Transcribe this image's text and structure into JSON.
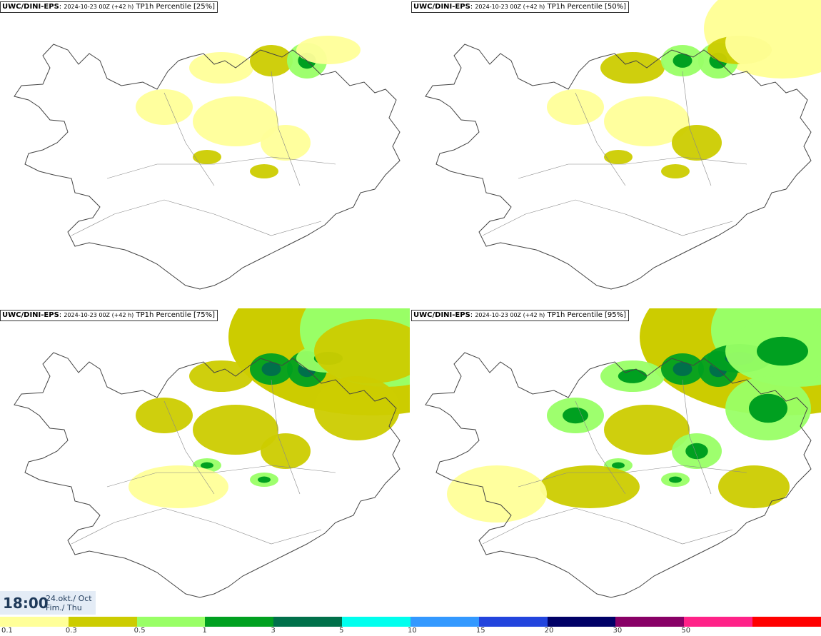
{
  "panels": [
    {
      "model": "UWC/DINI-EPS",
      "run": "2024-10-23 00Z (+42 h)",
      "field": "TP1h Percentile [25%]"
    },
    {
      "model": "UWC/DINI-EPS",
      "run": "2024-10-23 00Z (+42 h)",
      "field": "TP1h Percentile [50%]"
    },
    {
      "model": "UWC/DINI-EPS",
      "run": "2024-10-23 00Z (+42 h)",
      "field": "TP1h Percentile [75%]"
    },
    {
      "model": "UWC/DINI-EPS",
      "run": "2024-10-23 00Z (+42 h)",
      "field": "TP1h Percentile [95%]"
    }
  ],
  "valid_time": {
    "time": "18:00",
    "date_line1": "24.okt./ Oct",
    "date_line2": "Fim./ Thu"
  },
  "legend": {
    "colors": [
      "#ffff99",
      "#cccc00",
      "#99ff66",
      "#00a020",
      "#00704a",
      "#00ffee",
      "#3399ff",
      "#2244dd",
      "#000066",
      "#880066",
      "#ff2288",
      "#ff0000"
    ],
    "labels": [
      "0.1",
      "0.3",
      "0.5",
      "1",
      "3",
      "5",
      "10",
      "15",
      "20",
      "30",
      "50"
    ]
  }
}
